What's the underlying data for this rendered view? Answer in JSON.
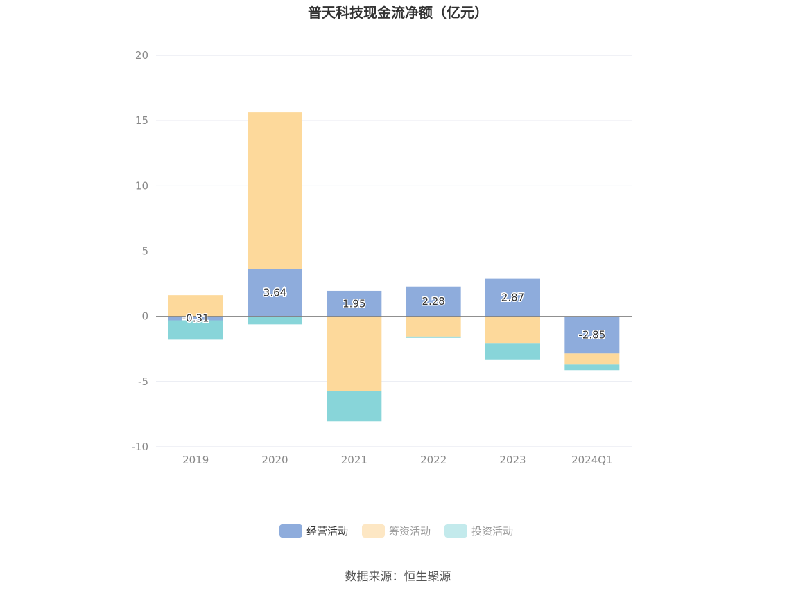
{
  "chart_data": {
    "type": "bar",
    "stacked": true,
    "title": "普天科技现金流净额（亿元）",
    "categories": [
      "2019",
      "2020",
      "2021",
      "2022",
      "2023",
      "2024Q1"
    ],
    "series": [
      {
        "name": "经营活动",
        "color": "#8eacdc",
        "values": [
          -0.31,
          3.64,
          1.95,
          2.28,
          2.87,
          -2.85
        ],
        "labels": [
          "-0.31",
          "3.64",
          "1.95",
          "2.28",
          "2.87",
          "-2.85"
        ]
      },
      {
        "name": "筹资活动",
        "color": "#fdd99b",
        "values": [
          1.62,
          12.0,
          -5.7,
          -1.55,
          -2.05,
          -0.85
        ]
      },
      {
        "name": "投资活动",
        "color": "#88d5d9",
        "values": [
          -1.48,
          -0.62,
          -2.35,
          -0.1,
          -1.3,
          -0.42
        ]
      }
    ],
    "ylim": [
      -10,
      20
    ],
    "yticks": [
      "20",
      "15",
      "10",
      "5",
      "0",
      "-5",
      "-10"
    ],
    "grid": true,
    "legend": "bottom-center"
  },
  "legend_colors": {
    "active": "#8eacdc",
    "inactive_1": "#fde7c4",
    "inactive_2": "#c3eaec"
  },
  "source": "数据来源：恒生聚源"
}
